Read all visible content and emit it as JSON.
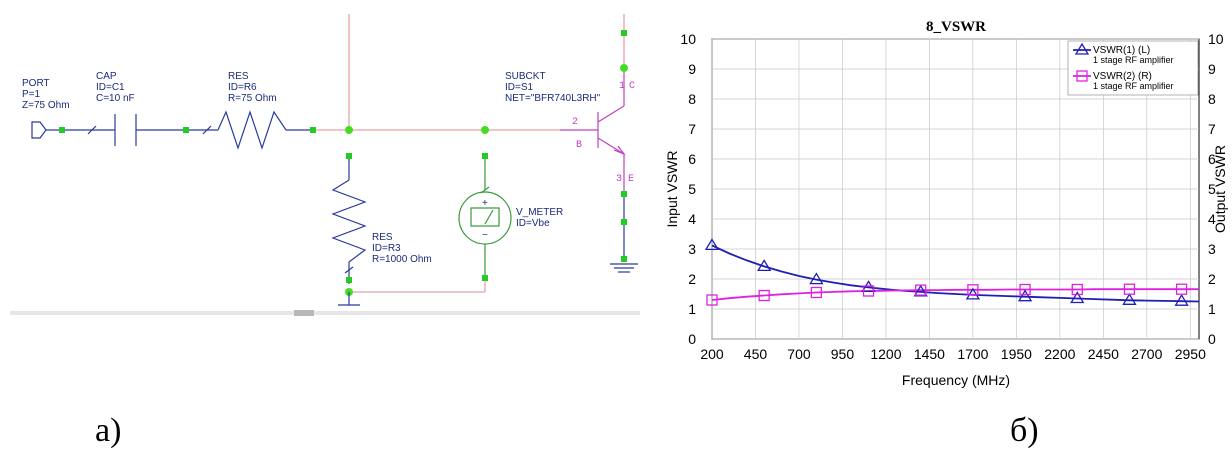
{
  "schematic": {
    "port": {
      "title": "PORT",
      "p": "P=1",
      "z": "Z=75 Ohm"
    },
    "cap": {
      "title": "CAP",
      "id": "ID=C1",
      "c": "C=10 nF"
    },
    "res_series": {
      "title": "RES",
      "id": "ID=R6",
      "r": "R=75 Ohm"
    },
    "subckt": {
      "title": "SUBCKT",
      "id": "ID=S1",
      "net": "NET=\"BFR740L3RH\""
    },
    "res_shunt": {
      "title": "RES",
      "id": "ID=R3",
      "r": "R=1000 Ohm"
    },
    "vmeter": {
      "title": "V_METER",
      "id": "ID=Vbe"
    },
    "pins": {
      "b_num": "2",
      "b": "B",
      "c_num": "1",
      "c": "C",
      "e_num": "3",
      "e": "E"
    },
    "caption": "а)"
  },
  "chart_data": {
    "type": "line",
    "title": "8_VSWR",
    "xlabel": "Frequency (MHz)",
    "ylabel_left": "Input VSWR",
    "ylabel_right": "Output VSWR",
    "xlim": [
      200,
      3000
    ],
    "ylim": [
      0,
      10
    ],
    "x_ticks": [
      "200",
      "450",
      "700",
      "950",
      "1200",
      "1450",
      "1700",
      "1950",
      "2200",
      "2450",
      "2700",
      "2950"
    ],
    "y_ticks": [
      "0",
      "1",
      "2",
      "3",
      "4",
      "5",
      "6",
      "7",
      "8",
      "9",
      "10"
    ],
    "grid": true,
    "legend_position": "top-right",
    "series": [
      {
        "name": "VSWR(1) (L)",
        "subtitle": "1 stage RF amplifier",
        "color": "#1f1fb5",
        "marker": "triangle",
        "x": [
          200,
          300,
          400,
          500,
          600,
          700,
          800,
          900,
          1000,
          1100,
          1200,
          1300,
          1400,
          1500,
          1600,
          1700,
          1800,
          1900,
          2000,
          2100,
          2200,
          2300,
          2400,
          2500,
          2600,
          2700,
          2800,
          2900,
          3000
        ],
        "values": [
          3.12,
          2.85,
          2.62,
          2.42,
          2.25,
          2.1,
          1.98,
          1.88,
          1.79,
          1.72,
          1.66,
          1.61,
          1.57,
          1.53,
          1.5,
          1.47,
          1.45,
          1.43,
          1.41,
          1.39,
          1.37,
          1.35,
          1.33,
          1.31,
          1.29,
          1.28,
          1.27,
          1.26,
          1.25
        ],
        "marker_x": [
          200,
          500,
          800,
          1100,
          1400,
          1700,
          2000,
          2300,
          2600,
          2900
        ]
      },
      {
        "name": "VSWR(2) (R)",
        "subtitle": "1 stage RF amplifier",
        "color": "#e020e0",
        "marker": "square",
        "x": [
          200,
          300,
          400,
          500,
          600,
          700,
          800,
          900,
          1000,
          1100,
          1200,
          1300,
          1400,
          1500,
          1600,
          1700,
          1800,
          1900,
          2000,
          2100,
          2200,
          2300,
          2400,
          2500,
          2600,
          2700,
          2800,
          2900,
          3000
        ],
        "values": [
          1.3,
          1.36,
          1.41,
          1.45,
          1.49,
          1.52,
          1.55,
          1.57,
          1.59,
          1.6,
          1.61,
          1.62,
          1.63,
          1.63,
          1.64,
          1.64,
          1.64,
          1.65,
          1.65,
          1.65,
          1.65,
          1.65,
          1.66,
          1.66,
          1.66,
          1.66,
          1.66,
          1.66,
          1.66
        ],
        "marker_x": [
          200,
          500,
          800,
          1100,
          1400,
          1700,
          2000,
          2300,
          2600,
          2900
        ]
      }
    ]
  },
  "chart_caption": "б)"
}
